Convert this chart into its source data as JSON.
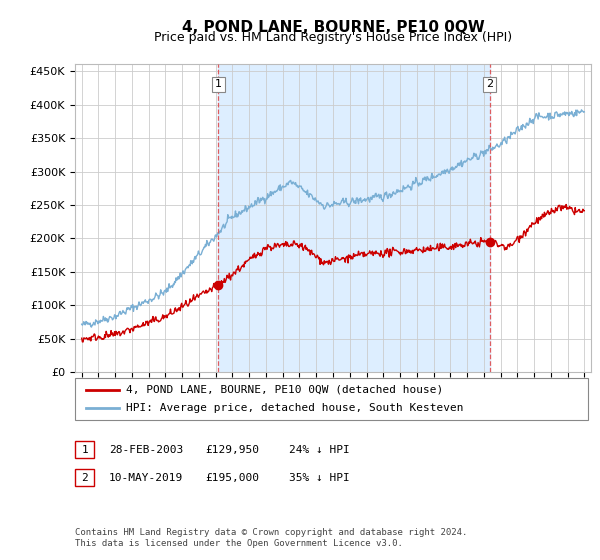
{
  "title": "4, POND LANE, BOURNE, PE10 0QW",
  "subtitle": "Price paid vs. HM Land Registry's House Price Index (HPI)",
  "title_fontsize": 11,
  "subtitle_fontsize": 9,
  "hpi_color": "#7aafd4",
  "price_color": "#cc0000",
  "marker1_date_x": 2003.15,
  "marker1_price": 129950,
  "marker2_date_x": 2019.36,
  "marker2_price": 195000,
  "ylim": [
    0,
    460000
  ],
  "xlim": [
    1994.6,
    2025.4
  ],
  "yticks": [
    0,
    50000,
    100000,
    150000,
    200000,
    250000,
    300000,
    350000,
    400000,
    450000
  ],
  "ytick_labels": [
    "£0",
    "£50K",
    "£100K",
    "£150K",
    "£200K",
    "£250K",
    "£300K",
    "£350K",
    "£400K",
    "£450K"
  ],
  "xticks": [
    1995,
    1996,
    1997,
    1998,
    1999,
    2000,
    2001,
    2002,
    2003,
    2004,
    2005,
    2006,
    2007,
    2008,
    2009,
    2010,
    2011,
    2012,
    2013,
    2014,
    2015,
    2016,
    2017,
    2018,
    2019,
    2020,
    2021,
    2022,
    2023,
    2024,
    2025
  ],
  "legend_line1": "4, POND LANE, BOURNE, PE10 0QW (detached house)",
  "legend_line2": "HPI: Average price, detached house, South Kesteven",
  "marker1_label": "1",
  "marker2_label": "2",
  "marker1_text": "28-FEB-2003",
  "marker1_price_text": "£129,950",
  "marker1_hpi_text": "24% ↓ HPI",
  "marker2_text": "10-MAY-2019",
  "marker2_price_text": "£195,000",
  "marker2_hpi_text": "35% ↓ HPI",
  "footnote": "Contains HM Land Registry data © Crown copyright and database right 2024.\nThis data is licensed under the Open Government Licence v3.0.",
  "bg_color": "#ffffff",
  "plot_bg_color": "#ffffff",
  "shade_color": "#ddeeff",
  "grid_color": "#cccccc"
}
